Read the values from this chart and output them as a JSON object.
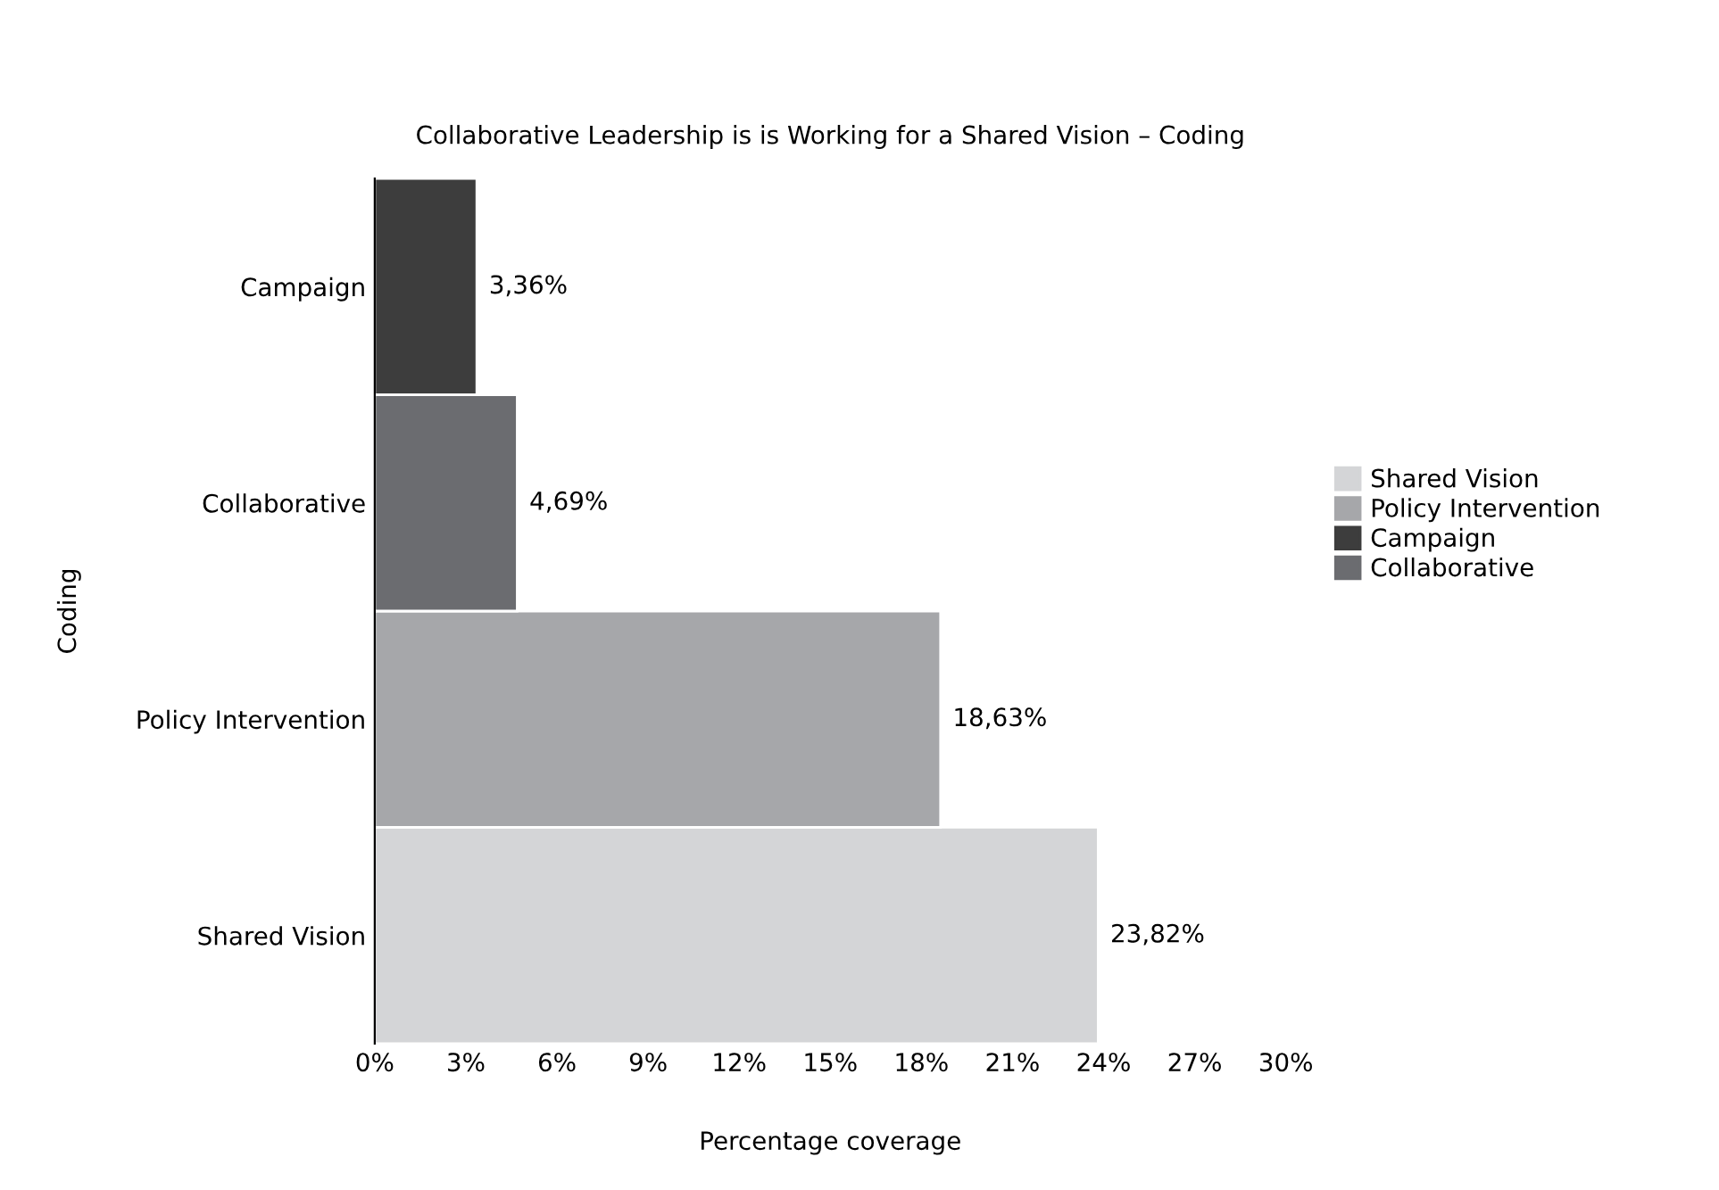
{
  "chart_data": {
    "type": "bar",
    "orientation": "horizontal",
    "title": "Collaborative Leadership is is Working for a Shared Vision – Coding",
    "xlabel": "Percentage coverage",
    "ylabel": "Coding",
    "categories": [
      "Campaign",
      "Collaborative",
      "Policy Intervention",
      "Shared Vision"
    ],
    "series": [
      {
        "name": "Shared Vision",
        "color": "#d4d5d7",
        "values": [
          null,
          null,
          null,
          23.82
        ],
        "value_labels": [
          null,
          null,
          null,
          "23,82%"
        ]
      },
      {
        "name": "Policy Intervention",
        "color": "#a6a7aa",
        "values": [
          null,
          null,
          18.63,
          null
        ],
        "value_labels": [
          null,
          null,
          "18,63%",
          null
        ]
      },
      {
        "name": "Campaign",
        "color": "#3d3d3d",
        "values": [
          3.36,
          null,
          null,
          null
        ],
        "value_labels": [
          "3,36%",
          null,
          null,
          null
        ]
      },
      {
        "name": "Collaborative",
        "color": "#6b6c70",
        "values": [
          null,
          4.69,
          null,
          null
        ],
        "value_labels": [
          null,
          "4,69%",
          null,
          null
        ]
      }
    ],
    "xlim": [
      0,
      30
    ],
    "xticks": [
      {
        "value": 0,
        "label": "0%"
      },
      {
        "value": 3,
        "label": "3%"
      },
      {
        "value": 6,
        "label": "6%"
      },
      {
        "value": 9,
        "label": "9%"
      },
      {
        "value": 12,
        "label": "12%"
      },
      {
        "value": 15,
        "label": "15%"
      },
      {
        "value": 18,
        "label": "18%"
      },
      {
        "value": 21,
        "label": "21%"
      },
      {
        "value": 24,
        "label": "24%"
      },
      {
        "value": 27,
        "label": "27%"
      },
      {
        "value": 30,
        "label": "30%"
      }
    ],
    "grid": false,
    "legend": "right"
  }
}
